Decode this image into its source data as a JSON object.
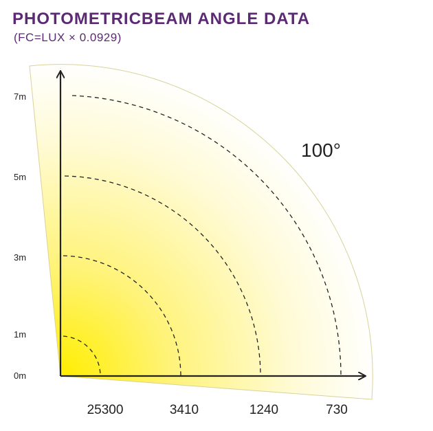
{
  "header": {
    "title": "PHOTOMETRICBEAM ANGLE DATA",
    "subtitle": "(FC=LUX × 0.0929)"
  },
  "diagram": {
    "beam_angle_label": "100°",
    "distance_labels": [
      "0m",
      "1m",
      "3m",
      "5m",
      "7m"
    ],
    "lux_labels": [
      "25300",
      "3410",
      "1240",
      "730"
    ],
    "colors": {
      "beam_center": "#ffef00",
      "beam_edge": "#ffffff",
      "axis": "#222222",
      "title": "#5b2a73"
    }
  }
}
